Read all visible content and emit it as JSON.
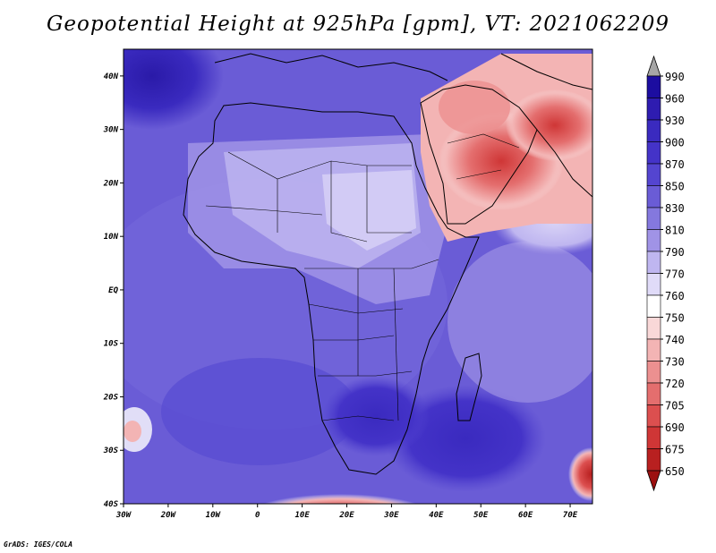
{
  "title": "Geopotential Height at 925hPa [gpm], VT: 2021062209",
  "footer": "GrADS: IGES/COLA",
  "map": {
    "lat_labels": [
      "40N",
      "30N",
      "20N",
      "10N",
      "EQ",
      "10S",
      "20S",
      "30S",
      "40S"
    ],
    "lon_labels": [
      "30W",
      "20W",
      "10W",
      "0",
      "10E",
      "20E",
      "30E",
      "40E",
      "50E",
      "60E",
      "70E"
    ],
    "lat_range": [
      -40,
      45
    ],
    "lon_range": [
      -30,
      75
    ]
  },
  "colorbar": {
    "levels": [
      "990",
      "960",
      "930",
      "900",
      "870",
      "850",
      "830",
      "810",
      "790",
      "770",
      "760",
      "750",
      "740",
      "730",
      "720",
      "705",
      "690",
      "675",
      "650"
    ],
    "colors": [
      "#a6a6a6",
      "#1c0da0",
      "#2e1cb0",
      "#3a2abf",
      "#4433c8",
      "#5445d0",
      "#6a5cd6",
      "#8478de",
      "#a093e6",
      "#bfb6f0",
      "#e0dbf8",
      "#ffffff",
      "#f9d8d8",
      "#f3b4b4",
      "#ec9090",
      "#e46e6e",
      "#dc4f4f",
      "#cf3636",
      "#b82020",
      "#9c1010"
    ]
  }
}
